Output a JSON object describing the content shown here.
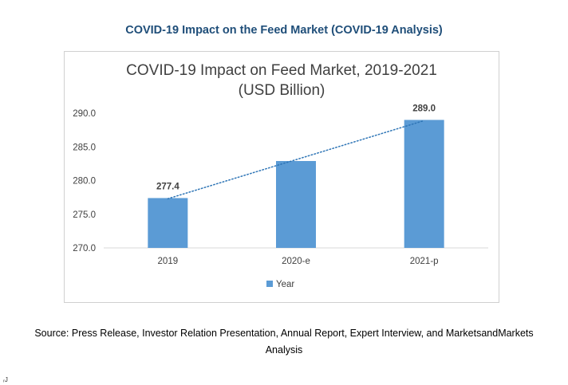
{
  "page": {
    "heading": "COVID-19 Impact on the Feed Market (COVID-19 Analysis)",
    "source_line1": "Source: Press Release, Investor Relation Presentation, Annual Report, Expert Interview, and MarketsandMarkets",
    "source_line2": "Analysis",
    "corner_mark": "ᵣJ"
  },
  "chart_data": {
    "type": "bar",
    "title_line1": "COVID-19 Impact on Feed Market, 2019-2021",
    "title_line2": "(USD Billion)",
    "categories": [
      "2019",
      "2020-e",
      "2021-p"
    ],
    "series": [
      {
        "name": "Year",
        "values": [
          277.4,
          282.9,
          289.0
        ],
        "color": "#5b9bd5"
      }
    ],
    "data_labels": [
      "277.4",
      "",
      "289.0"
    ],
    "y_ticks": [
      "270.0",
      "275.0",
      "280.0",
      "285.0",
      "290.0"
    ],
    "ylim": [
      270,
      290
    ],
    "trendline": {
      "type": "linear",
      "style": "dotted",
      "color": "#2e75b6"
    },
    "grid": false,
    "legend": "bottom"
  }
}
